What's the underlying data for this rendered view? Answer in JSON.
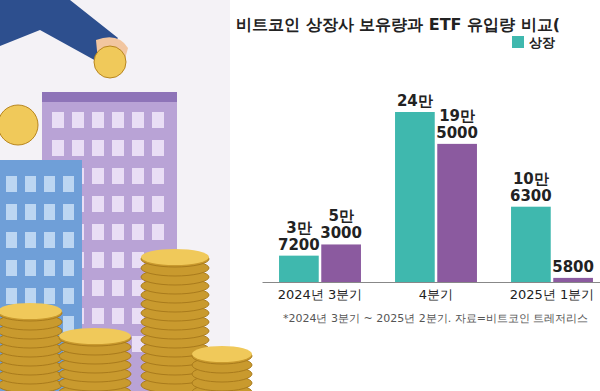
{
  "chart_data": {
    "type": "bar",
    "title": "비트코인 상장사 보유량과 ETF 유입량 비교(",
    "categories": [
      "2024년 3분기",
      "4분기",
      "2025년 1분기"
    ],
    "series": [
      {
        "name": "상장",
        "color": "#3fb8ae",
        "values": [
          37200,
          240000,
          106300
        ],
        "value_labels": [
          "3만\n7200",
          "24만",
          "10만\n6300"
        ]
      },
      {
        "name": null,
        "color": "#8b5a9f",
        "values": [
          53000,
          195000,
          5800
        ],
        "value_labels": [
          "5만\n3000",
          "19만\n5000",
          "5800"
        ]
      }
    ],
    "ylim": [
      0,
      240000
    ],
    "data_labels": true,
    "tick_labels": "x",
    "legend": "upper right",
    "footnote": "*2024년 3분기 ~ 2025년 2분기. 자료=비트코인 트레저리스"
  }
}
